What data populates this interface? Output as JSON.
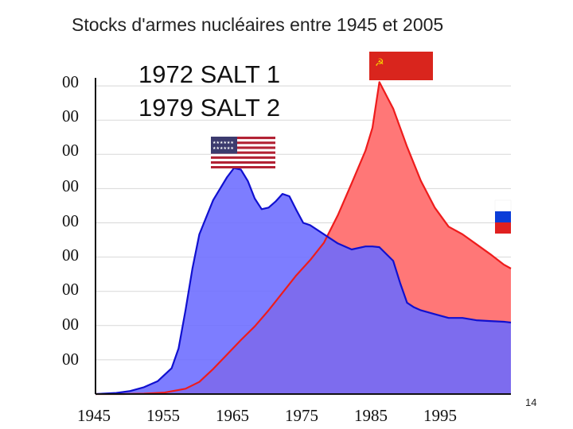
{
  "page_number": "14",
  "chart_data": {
    "type": "area",
    "title": "Stocks d'armes nucléaires entre 1945 et 2005",
    "xlabel": "",
    "ylabel": "",
    "x_ticks": [
      "1945",
      "1955",
      "1965",
      "1975",
      "1985",
      "1995"
    ],
    "y_ticks": [
      "00",
      "00",
      "00",
      "00",
      "00",
      "00",
      "00",
      "00",
      "00"
    ],
    "xlim": [
      1945,
      2005
    ],
    "ylim": [
      0,
      45000
    ],
    "grid": true,
    "annotations": [
      "1972 SALT 1",
      "1979 SALT 2"
    ],
    "series": [
      {
        "color": "#ee1c1c",
        "fill": "#ff7777",
        "x": [
          1945,
          1949,
          1952,
          1955,
          1958,
          1960,
          1962,
          1964,
          1966,
          1968,
          1970,
          1972,
          1974,
          1976,
          1978,
          1980,
          1982,
          1984,
          1985,
          1986,
          1988,
          1990,
          1992,
          1994,
          1996,
          1998,
          2000,
          2002,
          2004,
          2005
        ],
        "values": [
          0,
          0,
          50,
          200,
          700,
          1600,
          3300,
          5200,
          7100,
          8900,
          11000,
          13300,
          15600,
          17600,
          19900,
          23500,
          27700,
          32000,
          35000,
          41000,
          37500,
          32500,
          28000,
          24500,
          22000,
          21000,
          19700,
          18400,
          17000,
          16500
        ]
      },
      {
        "color": "#1010d0",
        "fill": "#6b6bff",
        "x": [
          1945,
          1948,
          1950,
          1952,
          1954,
          1956,
          1957,
          1958,
          1959,
          1960,
          1962,
          1964,
          1965,
          1966,
          1967,
          1968,
          1969,
          1970,
          1971,
          1972,
          1973,
          1974,
          1975,
          1976,
          1978,
          1980,
          1982,
          1984,
          1985,
          1986,
          1988,
          1989,
          1990,
          1991,
          1992,
          1994,
          1996,
          1998,
          2000,
          2002,
          2004,
          2005
        ],
        "values": [
          0,
          150,
          400,
          900,
          1700,
          3400,
          6000,
          11000,
          16500,
          21000,
          25500,
          28500,
          29700,
          29500,
          28000,
          25700,
          24300,
          24500,
          25300,
          26300,
          26000,
          24200,
          22500,
          22200,
          21000,
          19800,
          19000,
          19400,
          19400,
          19300,
          17500,
          14600,
          12000,
          11400,
          11000,
          10500,
          10000,
          10000,
          9700,
          9600,
          9500,
          9400
        ]
      }
    ]
  }
}
